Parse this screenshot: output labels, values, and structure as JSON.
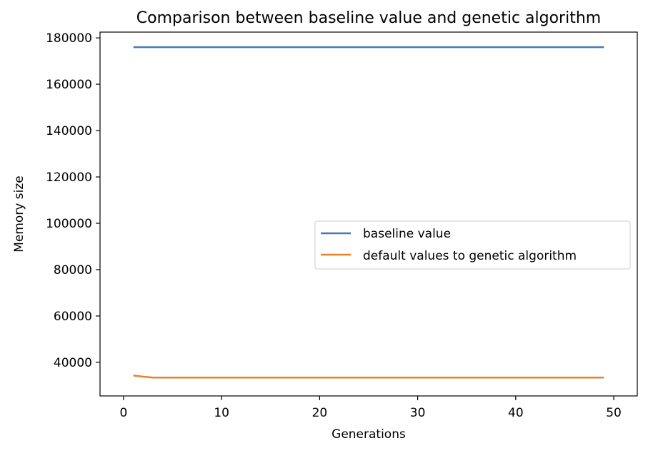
{
  "chart_data": {
    "type": "line",
    "title": "Comparison between baseline value and genetic algorithm",
    "xlabel": "Generations",
    "ylabel": "Memory size",
    "xlim": [
      -2.4,
      52.4
    ],
    "ylim": [
      25500,
      182500
    ],
    "xticks": [
      0,
      10,
      20,
      30,
      40,
      50
    ],
    "yticks": [
      40000,
      60000,
      80000,
      100000,
      120000,
      140000,
      160000,
      180000
    ],
    "grid": false,
    "legend_position": "center-right",
    "series": [
      {
        "name": "baseline value",
        "color": "#4878b0",
        "x": [
          1,
          2,
          3,
          5,
          10,
          20,
          30,
          40,
          49
        ],
        "y": [
          176000,
          176000,
          176000,
          176000,
          176000,
          176000,
          176000,
          176000,
          176000
        ]
      },
      {
        "name": "default values to genetic algorithm",
        "color": "#e8822a",
        "x": [
          1,
          2,
          3,
          5,
          10,
          20,
          30,
          40,
          49
        ],
        "y": [
          34300,
          33800,
          33400,
          33400,
          33400,
          33400,
          33400,
          33400,
          33400
        ]
      }
    ]
  }
}
